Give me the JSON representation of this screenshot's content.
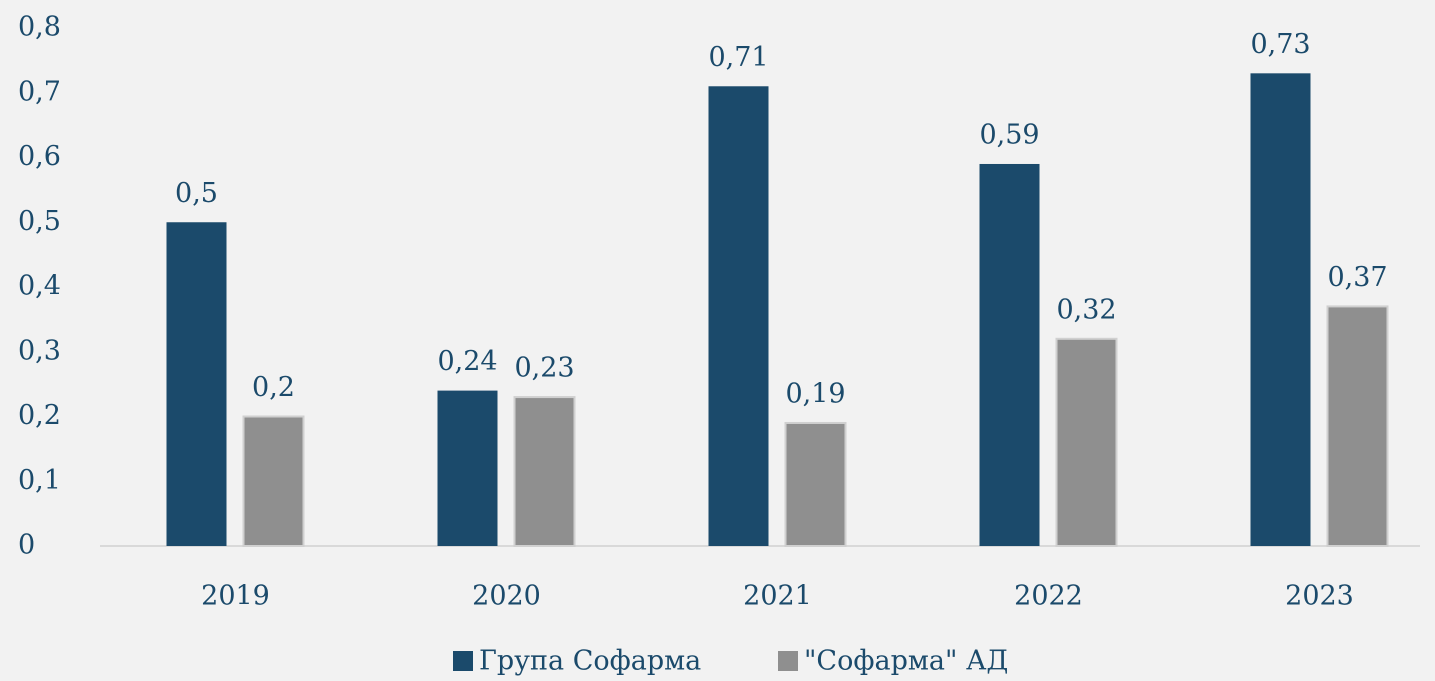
{
  "chart_data": {
    "type": "bar",
    "categories": [
      "2019",
      "2020",
      "2021",
      "2022",
      "2023"
    ],
    "series": [
      {
        "name": "Група Софарма",
        "color": "#1b4a6b",
        "values": [
          0.5,
          0.24,
          0.71,
          0.59,
          0.73
        ],
        "value_labels": [
          "0,5",
          "0,24",
          "0,71",
          "0,59",
          "0,73"
        ]
      },
      {
        "name": "\"Софарма\" АД",
        "color": "#8f8f8f",
        "values": [
          0.2,
          0.23,
          0.19,
          0.32,
          0.37
        ],
        "value_labels": [
          "0,2",
          "0,23",
          "0,19",
          "0,32",
          "0,37"
        ]
      }
    ],
    "ylim": [
      0,
      0.8
    ],
    "yticks": [
      {
        "value": 0,
        "label": "0"
      },
      {
        "value": 0.1,
        "label": "0,1"
      },
      {
        "value": 0.2,
        "label": "0,2"
      },
      {
        "value": 0.3,
        "label": "0,3"
      },
      {
        "value": 0.4,
        "label": "0,4"
      },
      {
        "value": 0.5,
        "label": "0,5"
      },
      {
        "value": 0.6,
        "label": "0,6"
      },
      {
        "value": 0.7,
        "label": "0,7"
      },
      {
        "value": 0.8,
        "label": "0,8"
      }
    ],
    "grid": false,
    "legend": "bottom"
  }
}
